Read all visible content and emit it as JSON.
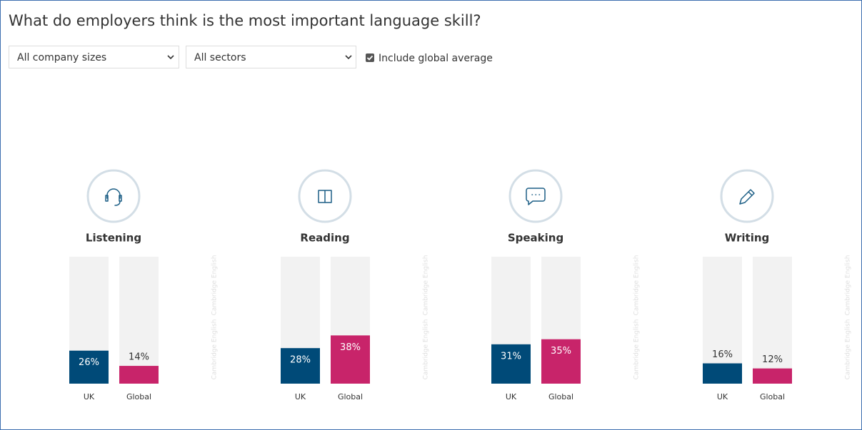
{
  "title": "What do employers think is the most important language skill?",
  "filters": {
    "company_size": "All company sizes",
    "sector": "All sectors",
    "include_global": "Include global average",
    "include_global_checked": true
  },
  "watermark": "Cambridge English",
  "chart_data": [
    {
      "type": "bar",
      "title": "Listening",
      "categories": [
        "UK",
        "Global"
      ],
      "values": [
        26,
        14
      ],
      "value_labels": [
        "26%",
        "14%"
      ],
      "colors": [
        "#004a78",
        "#c8246a"
      ],
      "ylim": [
        0,
        100
      ]
    },
    {
      "type": "bar",
      "title": "Reading",
      "categories": [
        "UK",
        "Global"
      ],
      "values": [
        28,
        38
      ],
      "value_labels": [
        "28%",
        "38%"
      ],
      "colors": [
        "#004a78",
        "#c8246a"
      ],
      "ylim": [
        0,
        100
      ]
    },
    {
      "type": "bar",
      "title": "Speaking",
      "categories": [
        "UK",
        "Global"
      ],
      "values": [
        31,
        35
      ],
      "value_labels": [
        "31%",
        "35%"
      ],
      "colors": [
        "#004a78",
        "#c8246a"
      ],
      "ylim": [
        0,
        100
      ]
    },
    {
      "type": "bar",
      "title": "Writing",
      "categories": [
        "UK",
        "Global"
      ],
      "values": [
        16,
        12
      ],
      "value_labels": [
        "16%",
        "12%"
      ],
      "colors": [
        "#004a78",
        "#c8246a"
      ],
      "ylim": [
        0,
        100
      ]
    }
  ]
}
